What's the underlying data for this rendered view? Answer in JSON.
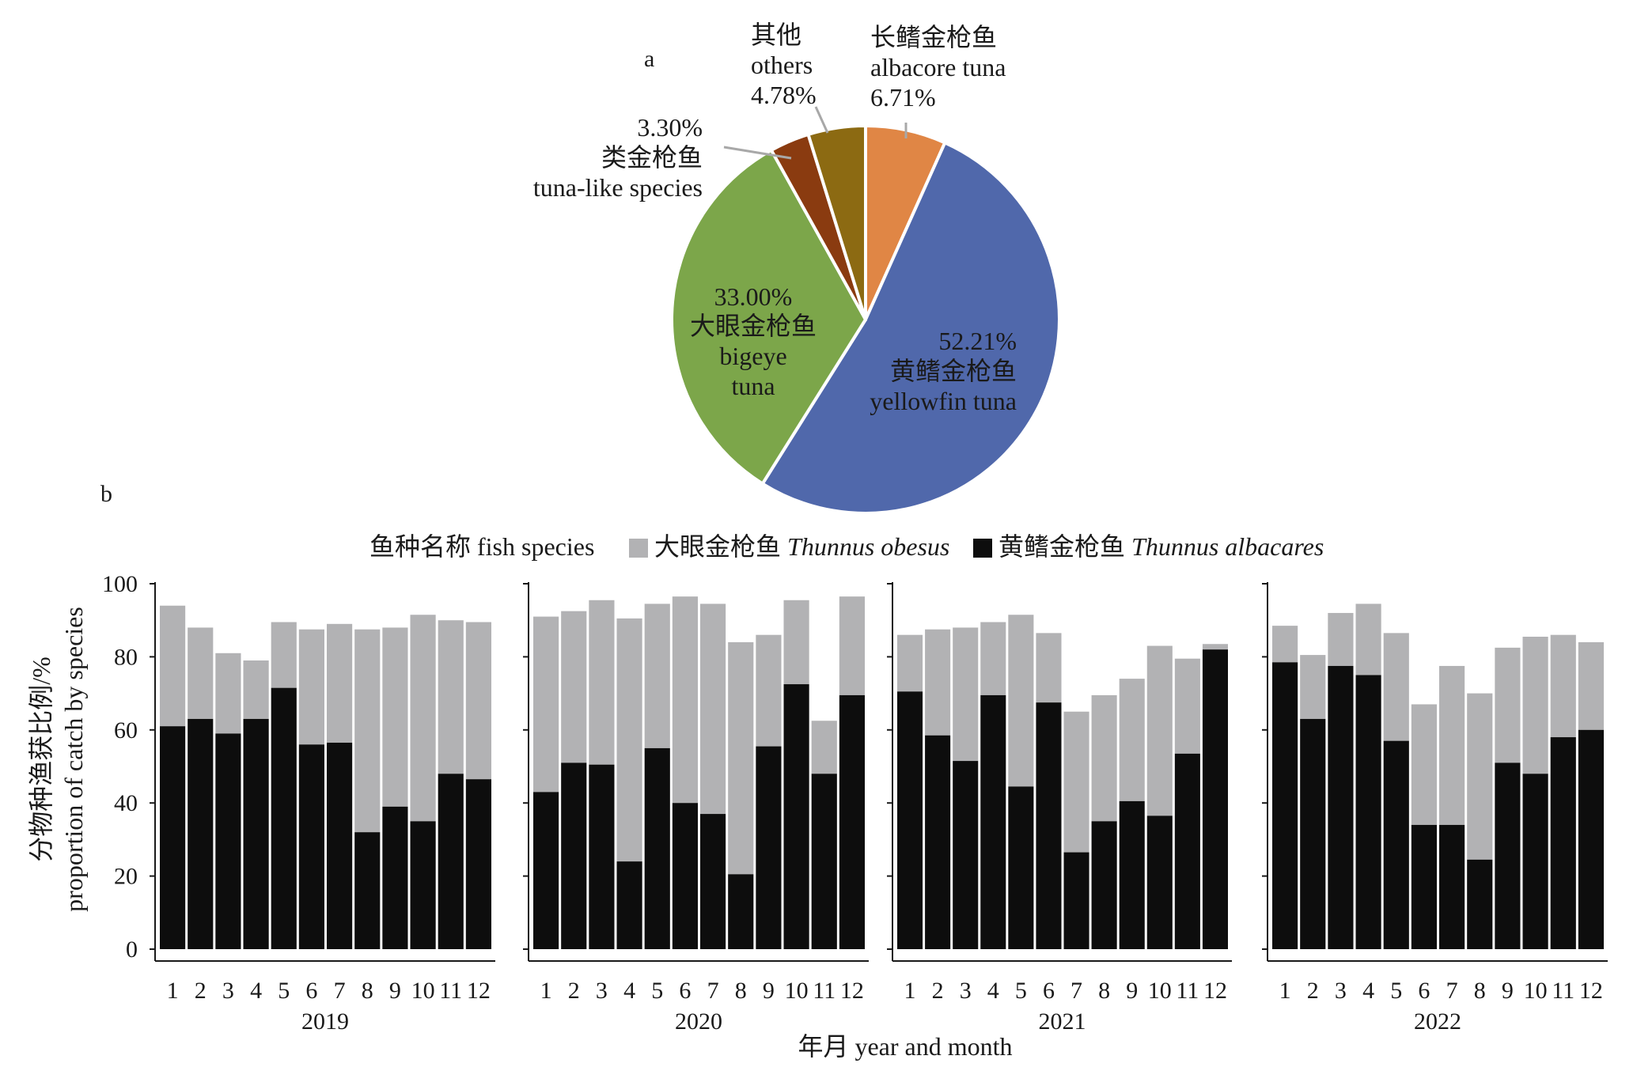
{
  "chart_data": [
    {
      "type": "pie",
      "panel_label": "a",
      "slices": [
        {
          "label_cn": "黄鳍金枪鱼",
          "label_en": "yellowfin tuna",
          "value": 52.21,
          "pct": "52.21%",
          "color": "#5068ab"
        },
        {
          "label_cn": "大眼金枪鱼",
          "label_en": "bigeye tuna",
          "value": 33.0,
          "pct": "33.00%",
          "color": "#7ca64a"
        },
        {
          "label_cn": "类金枪鱼",
          "label_en": "tuna-like species",
          "value": 3.3,
          "pct": "3.30%",
          "color": "#8a3b10"
        },
        {
          "label_cn": "其他",
          "label_en": "others",
          "value": 4.78,
          "pct": "4.78%",
          "color": "#8c6a12"
        },
        {
          "label_cn": "长鳍金枪鱼",
          "label_en": "albacore tuna",
          "value": 6.71,
          "pct": "6.71%",
          "color": "#e08645"
        }
      ],
      "bigeye_label_lines": [
        "大眼金枪鱼",
        "bigeye",
        "tuna"
      ]
    },
    {
      "type": "bar",
      "stacked": true,
      "panel_label": "b",
      "legend": {
        "title": "鱼种名称 fish species",
        "entries": [
          {
            "cn": "大眼金枪鱼",
            "latin": "Thunnus obesus",
            "color": "#b2b2b4"
          },
          {
            "cn": "黄鳍金枪鱼",
            "latin": "Thunnus albacares",
            "color": "#0d0d0d"
          }
        ]
      },
      "ylabel_cn": "分物种渔获比例/%",
      "ylabel_en": "proportion of catch by species",
      "xlabel": "年月 year and month",
      "ylim": [
        0,
        100
      ],
      "yticks": [
        0,
        20,
        40,
        60,
        80,
        100
      ],
      "months": [
        "1",
        "2",
        "3",
        "4",
        "5",
        "6",
        "7",
        "8",
        "9",
        "10",
        "11",
        "12"
      ],
      "panels": [
        {
          "year": "2019",
          "yellowfin": [
            61,
            63,
            59,
            63,
            71.5,
            56,
            56.5,
            32,
            39,
            35,
            48,
            46.5
          ],
          "total": [
            94,
            88,
            81,
            79,
            89.5,
            87.5,
            89,
            87.5,
            88,
            91.5,
            90,
            89.5
          ]
        },
        {
          "year": "2020",
          "yellowfin": [
            43,
            51,
            50.5,
            24,
            55,
            40,
            37,
            20.5,
            55.5,
            72.5,
            48,
            69.5
          ],
          "total": [
            91,
            92.5,
            95.5,
            90.5,
            94.5,
            96.5,
            94.5,
            84,
            86,
            95.5,
            62.5,
            96.5
          ]
        },
        {
          "year": "2021",
          "yellowfin": [
            70.5,
            58.5,
            51.5,
            69.5,
            44.5,
            67.5,
            26.5,
            35,
            40.5,
            36.5,
            53.5,
            82
          ],
          "total": [
            86,
            87.5,
            88,
            89.5,
            91.5,
            86.5,
            65,
            69.5,
            74,
            83,
            79.5,
            83.5
          ]
        },
        {
          "year": "2022",
          "yellowfin": [
            78.5,
            63,
            77.5,
            75,
            57,
            34,
            34,
            24.5,
            51,
            48,
            58,
            60
          ],
          "total": [
            88.5,
            80.5,
            92,
            94.5,
            86.5,
            67,
            77.5,
            70,
            82.5,
            85.5,
            86,
            84
          ]
        }
      ]
    }
  ]
}
